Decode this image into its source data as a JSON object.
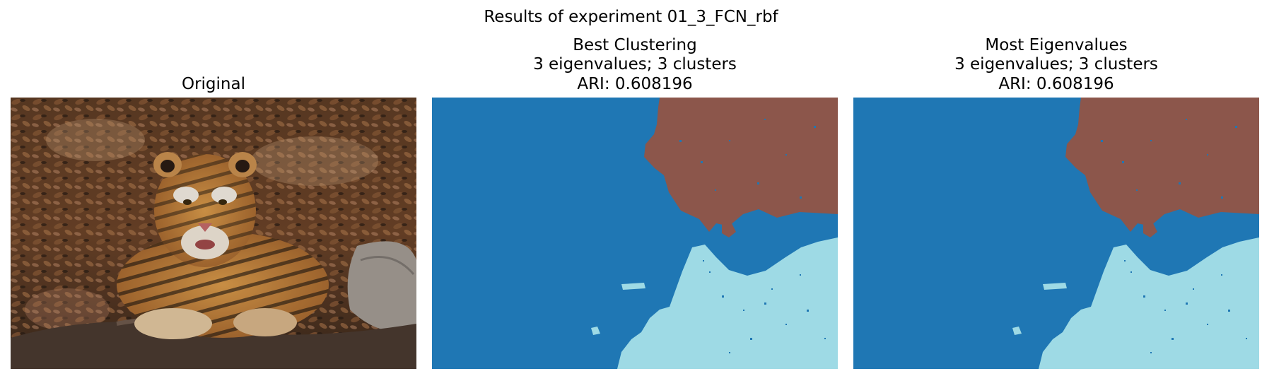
{
  "figure": {
    "suptitle": "Results of experiment 01_3_FCN_rbf"
  },
  "panels": [
    {
      "key": "original",
      "title_lines": [
        "Original"
      ],
      "image": "photo-tiger-lying-on-leaves"
    },
    {
      "key": "best",
      "title_lines": [
        "Best Clustering",
        "3 eigenvalues; 3 clusters",
        "ARI: 0.608196"
      ],
      "image": "segmentation-map",
      "eigenvalues": 3,
      "clusters": 3,
      "ari": 0.608196
    },
    {
      "key": "most",
      "title_lines": [
        "Most Eigenvalues",
        "3 eigenvalues; 3 clusters",
        "ARI: 0.608196"
      ],
      "image": "segmentation-map",
      "eigenvalues": 3,
      "clusters": 3,
      "ari": 0.608196
    }
  ],
  "chart_data": {
    "type": "heatmap",
    "title": "Results of experiment 01_3_FCN_rbf",
    "panel_titles": [
      "Original",
      "Best Clustering",
      "Most Eigenvalues"
    ],
    "cluster_colors": [
      "#1f77b4",
      "#8c564b",
      "#9edae5"
    ],
    "cluster_regions": [
      "blue background",
      "brown region upper-right",
      "light-cyan region lower-right"
    ],
    "eigenvalues": 3,
    "clusters": 3,
    "ari": 0.608196,
    "axes_visible": false,
    "grid": false
  }
}
